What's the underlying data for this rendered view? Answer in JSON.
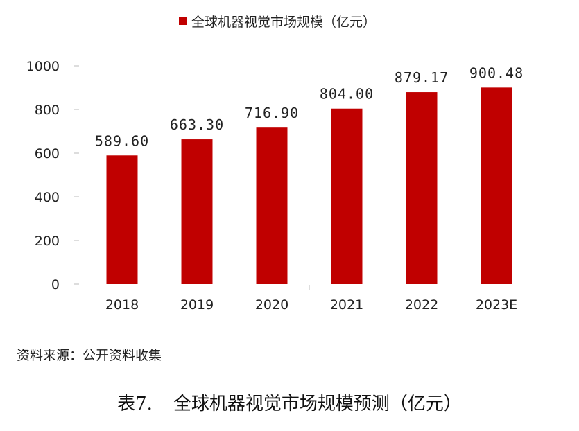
{
  "chart_data": {
    "type": "bar",
    "title": "",
    "legend": {
      "label": "全球机器视觉市场规模（亿元）",
      "placement": "top-center"
    },
    "categories": [
      "2018",
      "2019",
      "2020",
      "2021",
      "2022",
      "2023E"
    ],
    "series": [
      {
        "name": "全球机器视觉市场规模（亿元）",
        "values": [
          589.6,
          663.3,
          716.9,
          804.0,
          879.17,
          900.48
        ]
      }
    ],
    "data_labels": [
      "589.60",
      "663.30",
      "716.90",
      "804.00",
      "879.17",
      "900.48"
    ],
    "yticks": [
      0,
      200,
      400,
      600,
      800,
      1000
    ],
    "ylim": [
      0,
      1000
    ],
    "grid": false,
    "bar_color": "#c00000"
  },
  "source": "资料来源：公开资料收集",
  "caption": {
    "number": "表7.",
    "text": "全球机器视觉市场规模预测（亿元）"
  }
}
